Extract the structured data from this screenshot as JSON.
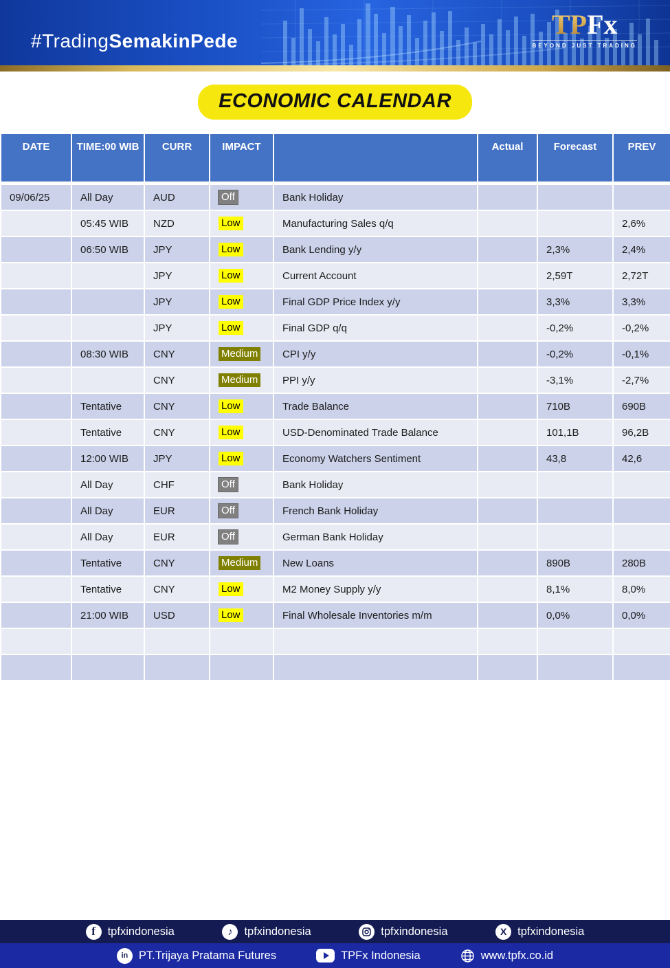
{
  "banner": {
    "hashtag_regular": "#Trading",
    "hashtag_bold": "SemakinPede",
    "logo_tp": "TP",
    "logo_fx": "Fx",
    "logo_tagline": "BEYOND JUST TRADING"
  },
  "title": "ECONOMIC CALENDAR",
  "table": {
    "headers": {
      "date": "DATE",
      "time": "TIME:00 WIB",
      "curr": "CURR",
      "impact": "IMPACT",
      "event": "",
      "actual": "Actual",
      "forecast": "Forecast",
      "prev": "PREV"
    },
    "rows": [
      {
        "date": "09/06/25",
        "time": "All Day",
        "curr": "AUD",
        "impact": "Off",
        "event": "Bank Holiday",
        "actual": "",
        "forecast": "",
        "prev": ""
      },
      {
        "date": "",
        "time": "05:45 WIB",
        "curr": "NZD",
        "impact": "Low",
        "event": "Manufacturing Sales q/q",
        "actual": "",
        "forecast": "",
        "prev": "2,6%"
      },
      {
        "date": "",
        "time": "06:50 WIB",
        "curr": "JPY",
        "impact": "Low",
        "event": "Bank Lending y/y",
        "actual": "",
        "forecast": "2,3%",
        "prev": "2,4%"
      },
      {
        "date": "",
        "time": "",
        "curr": "JPY",
        "impact": "Low",
        "event": "Current Account",
        "actual": "",
        "forecast": "2,59T",
        "prev": "2,72T"
      },
      {
        "date": "",
        "time": "",
        "curr": "JPY",
        "impact": "Low",
        "event": "Final GDP Price Index y/y",
        "actual": "",
        "forecast": "3,3%",
        "prev": "3,3%"
      },
      {
        "date": "",
        "time": "",
        "curr": "JPY",
        "impact": "Low",
        "event": "Final GDP q/q",
        "actual": "",
        "forecast": "-0,2%",
        "prev": "-0,2%"
      },
      {
        "date": "",
        "time": "08:30 WIB",
        "curr": "CNY",
        "impact": "Medium",
        "event": "CPI y/y",
        "actual": "",
        "forecast": "-0,2%",
        "prev": "-0,1%"
      },
      {
        "date": "",
        "time": "",
        "curr": "CNY",
        "impact": "Medium",
        "event": "PPI y/y",
        "actual": "",
        "forecast": "-3,1%",
        "prev": "-2,7%"
      },
      {
        "date": "",
        "time": "Tentative",
        "curr": "CNY",
        "impact": "Low",
        "event": "Trade Balance",
        "actual": "",
        "forecast": "710B",
        "prev": "690B"
      },
      {
        "date": "",
        "time": "Tentative",
        "curr": "CNY",
        "impact": "Low",
        "event": "USD-Denominated Trade Balance",
        "actual": "",
        "forecast": "101,1B",
        "prev": "96,2B"
      },
      {
        "date": "",
        "time": "12:00 WIB",
        "curr": "JPY",
        "impact": "Low",
        "event": "Economy Watchers Sentiment",
        "actual": "",
        "forecast": "43,8",
        "prev": "42,6"
      },
      {
        "date": "",
        "time": "All Day",
        "curr": "CHF",
        "impact": "Off",
        "event": "Bank Holiday",
        "actual": "",
        "forecast": "",
        "prev": ""
      },
      {
        "date": "",
        "time": "All Day",
        "curr": "EUR",
        "impact": "Off",
        "event": "French Bank Holiday",
        "actual": "",
        "forecast": "",
        "prev": ""
      },
      {
        "date": "",
        "time": "All Day",
        "curr": "EUR",
        "impact": "Off",
        "event": "German Bank Holiday",
        "actual": "",
        "forecast": "",
        "prev": ""
      },
      {
        "date": "",
        "time": "Tentative",
        "curr": "CNY",
        "impact": "Medium",
        "event": "New Loans",
        "actual": "",
        "forecast": "890B",
        "prev": "280B"
      },
      {
        "date": "",
        "time": "Tentative",
        "curr": "CNY",
        "impact": "Low",
        "event": "M2 Money Supply y/y",
        "actual": "",
        "forecast": "8,1%",
        "prev": "8,0%"
      },
      {
        "date": "",
        "time": "21:00 WIB",
        "curr": "USD",
        "impact": "Low",
        "event": "Final Wholesale Inventories m/m",
        "actual": "",
        "forecast": "0,0%",
        "prev": "0,0%"
      },
      {
        "date": "",
        "time": "",
        "curr": "",
        "impact": "",
        "event": "",
        "actual": "",
        "forecast": "",
        "prev": ""
      },
      {
        "date": "",
        "time": "",
        "curr": "",
        "impact": "",
        "event": "",
        "actual": "",
        "forecast": "",
        "prev": ""
      }
    ]
  },
  "footer": {
    "social": [
      {
        "icon": "facebook-icon",
        "handle": "tpfxindonesia"
      },
      {
        "icon": "tiktok-icon",
        "handle": "tpfxindonesia"
      },
      {
        "icon": "instagram-icon",
        "handle": "tpfxindonesia"
      },
      {
        "icon": "x-icon",
        "handle": "tpfxindonesia"
      }
    ],
    "bottom": [
      {
        "icon": "linkedin-icon",
        "label": "PT.Trijaya Pratama Futures"
      },
      {
        "icon": "youtube-icon",
        "label": "TPFx Indonesia"
      },
      {
        "icon": "globe-icon",
        "label": "www.tpfx.co.id"
      }
    ]
  },
  "colors": {
    "header_blue": "#4472c4",
    "row_dark": "#cbd2e9",
    "row_light": "#e9ebf4",
    "impact_low": "#ffff00",
    "impact_medium": "#7f7f00",
    "impact_off": "#808080",
    "title_yellow": "#f6e70e",
    "footer_navy": "#131b52",
    "footer_blue": "#1b2aa3",
    "gold": "#d9b95c"
  }
}
